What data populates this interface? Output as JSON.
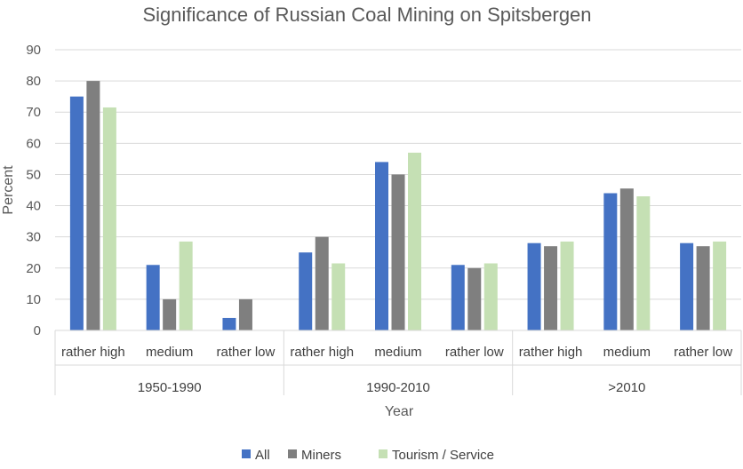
{
  "chart_data": {
    "type": "bar",
    "title": "Significance of Russian Coal Mining on Spitsbergen",
    "xlabel": "Year",
    "ylabel": "Percent",
    "ylim": [
      0,
      90
    ],
    "yticks": [
      "0",
      "10",
      "20",
      "30",
      "40",
      "50",
      "60",
      "70",
      "80",
      "90"
    ],
    "grid": true,
    "legend_position": "bottom",
    "groups": [
      {
        "label": "1950-1990",
        "categories": [
          "rather high",
          "medium",
          "rather low"
        ]
      },
      {
        "label": "1990-2010",
        "categories": [
          "rather high",
          "medium",
          "rather low"
        ]
      },
      {
        "label": ">2010",
        "categories": [
          "rather high",
          "medium",
          "rather low"
        ]
      }
    ],
    "categories": [
      "rather high",
      "medium",
      "rather low",
      "rather high",
      "medium",
      "rather low",
      "rather high",
      "medium",
      "rather low"
    ],
    "series": [
      {
        "name": "All",
        "color": "#4472c4",
        "values": [
          75,
          21,
          4,
          25,
          54,
          21,
          28,
          44,
          28
        ]
      },
      {
        "name": "Miners",
        "color": "#7f7f7f",
        "values": [
          80,
          10,
          10,
          30,
          50,
          20,
          27,
          45.5,
          27
        ]
      },
      {
        "name": "Tourism / Service",
        "color": "#c5e0b4",
        "values": [
          71.5,
          28.5,
          0,
          21.5,
          57,
          21.5,
          28.5,
          43,
          28.5
        ]
      }
    ]
  }
}
